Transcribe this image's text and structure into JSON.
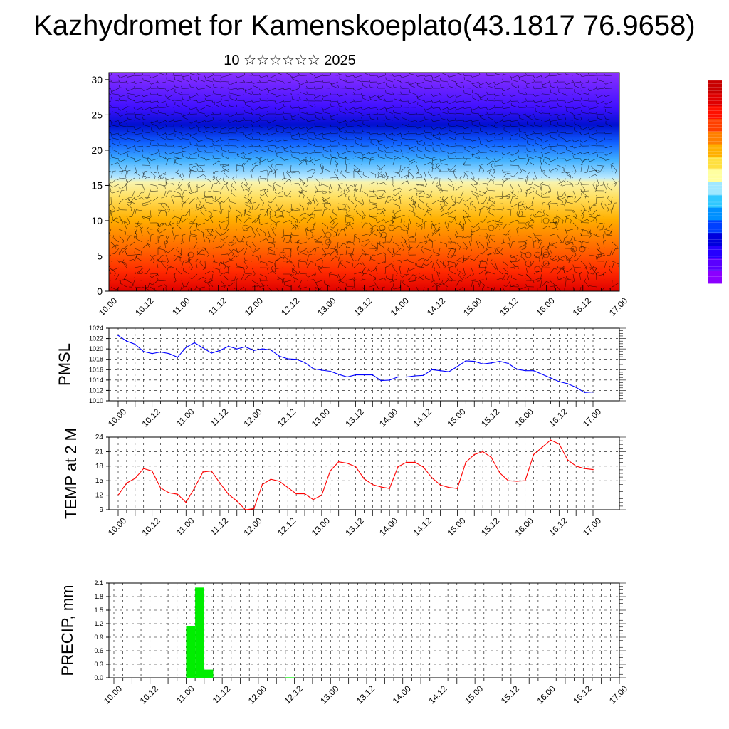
{
  "title": "Kazhydromet for Kamenskoeplato(43.1817 76.9658)",
  "subtitle": "10 ☆☆☆☆☆☆ 2025",
  "time_labels": [
    "10.00",
    "10.12",
    "11.00",
    "11.12",
    "12.00",
    "12.12",
    "13.00",
    "13.12",
    "14.00",
    "14.12",
    "15.00",
    "15.12",
    "16.00",
    "16.12",
    "17.00"
  ],
  "colors": {
    "pmsl_line": "#0000ff",
    "temp_line": "#ff0000",
    "precip_bar": "#00ee00",
    "colorbar": [
      "#8b00ff",
      "#5a00ff",
      "#2600ff",
      "#0000dd",
      "#0040ff",
      "#0090ff",
      "#30c8ff",
      "#a0e8ff",
      "#ffffa0",
      "#ffe040",
      "#ffb000",
      "#ff8000",
      "#ff4000",
      "#ff1000",
      "#e00000",
      "#c80000"
    ]
  },
  "chart_data": [
    {
      "type": "heatmap",
      "title": "",
      "xlabel": "",
      "ylabel": "",
      "x": [
        "10.00",
        "10.12",
        "11.00",
        "11.12",
        "12.00",
        "12.12",
        "13.00",
        "13.12",
        "14.00",
        "14.12",
        "15.00",
        "15.12",
        "16.00",
        "16.12",
        "17.00"
      ],
      "y_ticks": [
        0,
        5,
        10,
        15,
        20,
        25,
        30
      ],
      "ylim": [
        0,
        31
      ],
      "wind_barbs": true,
      "legend": "colorbar right"
    },
    {
      "type": "line",
      "ylabel": "PMSL",
      "ylim": [
        1010,
        1024
      ],
      "y_ticks": [
        1010,
        1012,
        1014,
        1016,
        1018,
        1020,
        1022,
        1024
      ],
      "x_step_hours": 3,
      "grid": true,
      "values": [
        1022.6,
        1021.5,
        1020.9,
        1019.5,
        1019.1,
        1019.4,
        1019.1,
        1018.4,
        1020.3,
        1021.2,
        1020.2,
        1019.2,
        1019.7,
        1020.5,
        1020.0,
        1020.4,
        1019.7,
        1020.0,
        1019.8,
        1018.6,
        1018.1,
        1018.0,
        1017.4,
        1016.2,
        1015.9,
        1015.7,
        1015.1,
        1014.6,
        1015.0,
        1015.0,
        1015.0,
        1013.9,
        1014.0,
        1014.6,
        1014.6,
        1014.8,
        1014.9,
        1016.0,
        1015.8,
        1015.6,
        1016.6,
        1017.7,
        1017.6,
        1017.1,
        1017.3,
        1017.6,
        1017.2,
        1016.1,
        1015.8,
        1015.8,
        1015.1,
        1014.4,
        1013.7,
        1013.3,
        1012.6,
        1011.6,
        1011.7
      ]
    },
    {
      "type": "line",
      "ylabel": "TEMP at 2 M",
      "ylim": [
        9,
        24
      ],
      "y_ticks": [
        9,
        12,
        15,
        18,
        21,
        24
      ],
      "x_step_hours": 3,
      "grid": true,
      "values": [
        12.0,
        14.5,
        15.5,
        17.5,
        17.0,
        13.5,
        12.5,
        12.2,
        10.5,
        13.5,
        16.8,
        17.0,
        14.5,
        12.2,
        10.8,
        9.0,
        9.2,
        14.2,
        15.3,
        14.9,
        13.6,
        12.3,
        12.3,
        11.1,
        12.0,
        17.0,
        18.9,
        18.6,
        17.9,
        15.4,
        14.2,
        13.7,
        13.4,
        17.9,
        18.8,
        18.8,
        17.8,
        15.6,
        14.1,
        13.6,
        13.4,
        18.8,
        20.4,
        21.0,
        19.8,
        16.6,
        15.0,
        14.9,
        15.0,
        20.4,
        21.9,
        23.4,
        22.6,
        19.3,
        18.0,
        17.5,
        17.3
      ]
    },
    {
      "type": "bar",
      "ylabel": "PRECIP, mm",
      "ylim": [
        0,
        2.1
      ],
      "y_ticks": [
        "0.0",
        "0.3",
        "0.6",
        "0.9",
        "1.2",
        "1.5",
        "1.8",
        "2.1"
      ],
      "x_step_hours": 3,
      "grid": true,
      "values": [
        0,
        0,
        0,
        0,
        0,
        0,
        0,
        0,
        1.15,
        2.0,
        0.18,
        0,
        0,
        0,
        0,
        0,
        0,
        0,
        0,
        0.01,
        0,
        0,
        0,
        0,
        0,
        0,
        0,
        0,
        0,
        0,
        0,
        0,
        0,
        0,
        0,
        0,
        0,
        0,
        0,
        0,
        0,
        0,
        0,
        0,
        0,
        0,
        0,
        0,
        0,
        0,
        0,
        0,
        0,
        0,
        0,
        0
      ]
    }
  ]
}
